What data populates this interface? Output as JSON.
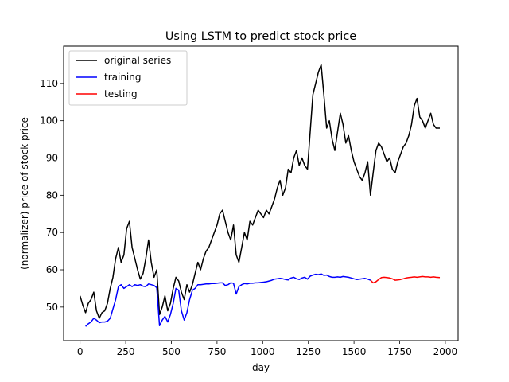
{
  "chart_data": {
    "type": "line",
    "title": "Using LSTM to predict stock price",
    "xlabel": "day",
    "ylabel": "(normalizer) price of stock price",
    "xlim": [
      -90,
      2070
    ],
    "ylim": [
      41,
      120
    ],
    "xticks": [
      0,
      250,
      500,
      750,
      1000,
      1250,
      1500,
      1750,
      2000
    ],
    "yticks": [
      50,
      60,
      70,
      80,
      90,
      100,
      110
    ],
    "grid": false,
    "legend_position": "top-left",
    "series": [
      {
        "name": "original series",
        "color": "#000000",
        "x": [
          0,
          15,
          30,
          45,
          60,
          75,
          90,
          105,
          120,
          135,
          150,
          165,
          180,
          195,
          210,
          225,
          240,
          255,
          270,
          285,
          300,
          315,
          330,
          345,
          360,
          375,
          390,
          405,
          420,
          435,
          450,
          465,
          480,
          495,
          510,
          525,
          540,
          555,
          570,
          585,
          600,
          615,
          630,
          645,
          660,
          675,
          690,
          705,
          720,
          735,
          750,
          765,
          780,
          795,
          810,
          825,
          840,
          855,
          870,
          885,
          900,
          915,
          930,
          945,
          960,
          975,
          990,
          1005,
          1020,
          1035,
          1050,
          1065,
          1080,
          1095,
          1110,
          1125,
          1140,
          1155,
          1170,
          1185,
          1200,
          1215,
          1230,
          1245,
          1260,
          1275,
          1290,
          1305,
          1320,
          1335,
          1350,
          1365,
          1380,
          1395,
          1410,
          1425,
          1440,
          1455,
          1470,
          1485,
          1500,
          1515,
          1530,
          1545,
          1560,
          1575,
          1590,
          1605,
          1620,
          1635,
          1650,
          1665,
          1680,
          1695,
          1710,
          1725,
          1740,
          1755,
          1770,
          1785,
          1800,
          1815,
          1830,
          1845,
          1860,
          1875,
          1890,
          1905,
          1920,
          1935,
          1950,
          1970
        ],
        "values": [
          53,
          50.5,
          48.5,
          51,
          52,
          54,
          49,
          47,
          48.5,
          49,
          51,
          55,
          58,
          63,
          66,
          62,
          64,
          71,
          73,
          66,
          63,
          60,
          57.5,
          59,
          63,
          68,
          62,
          58,
          60,
          48,
          50,
          53,
          49,
          51,
          55,
          58,
          57,
          54,
          52,
          56,
          54,
          56,
          59,
          62,
          60,
          63,
          65,
          66,
          68,
          70,
          72,
          75,
          76,
          73,
          70,
          68,
          72,
          64,
          62,
          66,
          70,
          68,
          73,
          72,
          74,
          76,
          75,
          74,
          76,
          75,
          77,
          79,
          82,
          84,
          80,
          82,
          87,
          86,
          90,
          92,
          88,
          90,
          88,
          87,
          97,
          107,
          110,
          113,
          115,
          107,
          98,
          100,
          95,
          92,
          97,
          102,
          99,
          94,
          96,
          92,
          89,
          87,
          85,
          84,
          86,
          89,
          80,
          86,
          92,
          94,
          93,
          91,
          89,
          90,
          87,
          86,
          89,
          91,
          93,
          94,
          96,
          99,
          104,
          106,
          101,
          100,
          98,
          100,
          102,
          99,
          98,
          98
        ]
      },
      {
        "name": "training",
        "color": "#0000ff",
        "x": [
          30,
          45,
          60,
          75,
          90,
          105,
          120,
          135,
          150,
          165,
          180,
          195,
          210,
          225,
          240,
          255,
          270,
          285,
          300,
          315,
          330,
          345,
          360,
          375,
          390,
          405,
          420,
          435,
          450,
          465,
          480,
          495,
          510,
          525,
          540,
          555,
          570,
          585,
          600,
          615,
          630,
          645,
          660,
          675,
          690,
          705,
          720,
          735,
          750,
          765,
          780,
          795,
          810,
          825,
          840,
          855,
          870,
          885,
          900,
          915,
          930,
          945,
          960,
          975,
          990,
          1005,
          1020,
          1035,
          1050,
          1065,
          1080,
          1095,
          1110,
          1125,
          1140,
          1155,
          1170,
          1185,
          1200,
          1215,
          1230,
          1245,
          1260,
          1275,
          1290,
          1305,
          1320,
          1335,
          1350,
          1365,
          1380,
          1395,
          1410,
          1425,
          1440,
          1455,
          1470,
          1485,
          1500,
          1515,
          1530,
          1545,
          1560,
          1575,
          1590
        ],
        "values": [
          44.8,
          45.5,
          46,
          47,
          46.5,
          45.8,
          46,
          46,
          46.2,
          47,
          49.5,
          52,
          55.5,
          56,
          55,
          55.5,
          56,
          55.5,
          56,
          55.8,
          56,
          55.6,
          55.5,
          56.2,
          56,
          55.8,
          55.2,
          45,
          46.5,
          47.5,
          46,
          48,
          51,
          55,
          54.5,
          49,
          46.5,
          48.5,
          52,
          54.5,
          55,
          56,
          56,
          56.1,
          56.2,
          56.2,
          56.3,
          56.3,
          56.4,
          56.5,
          56.5,
          55.8,
          56,
          56.5,
          56.4,
          53.5,
          55.5,
          56,
          56.3,
          56.2,
          56.4,
          56.4,
          56.5,
          56.5,
          56.6,
          56.7,
          56.8,
          57,
          57.2,
          57.5,
          57.6,
          57.7,
          57.6,
          57.4,
          57.3,
          57.8,
          58,
          57.6,
          57.4,
          57.8,
          58,
          57.5,
          58.3,
          58.6,
          58.8,
          58.7,
          58.9,
          58.5,
          58.6,
          58.2,
          58,
          58,
          58.1,
          58,
          58.2,
          58.1,
          58,
          57.8,
          57.6,
          57.4,
          57.5,
          57.6,
          57.7,
          57.5,
          57.2
        ]
      },
      {
        "name": "testing",
        "color": "#ff0000",
        "x": [
          1590,
          1605,
          1620,
          1635,
          1650,
          1665,
          1680,
          1695,
          1710,
          1725,
          1740,
          1755,
          1770,
          1785,
          1800,
          1815,
          1830,
          1845,
          1860,
          1875,
          1890,
          1905,
          1920,
          1935,
          1950,
          1970
        ],
        "values": [
          57.2,
          56.5,
          56.8,
          57.4,
          57.9,
          58,
          57.9,
          57.8,
          57.6,
          57.2,
          57.3,
          57.4,
          57.6,
          57.8,
          57.9,
          58,
          58.1,
          58,
          58.1,
          58.2,
          58.1,
          58.1,
          58,
          58.1,
          58,
          57.9
        ]
      }
    ]
  }
}
